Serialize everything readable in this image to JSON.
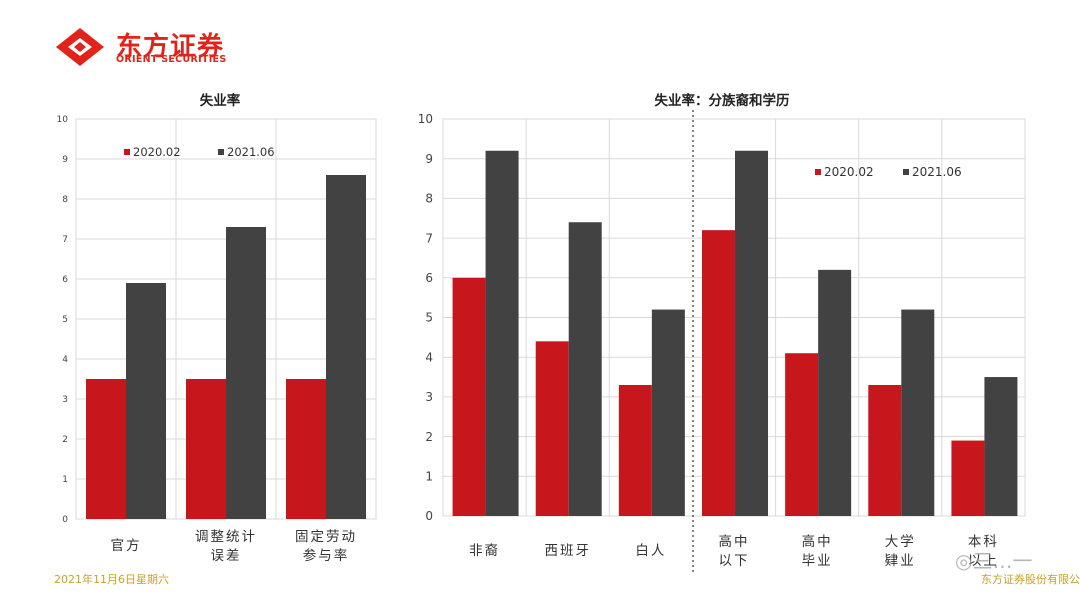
{
  "brand": {
    "name_cn": "东方证券",
    "name_en": "ORIENT SECURITIES",
    "logo_color": "#e2231a"
  },
  "footer": {
    "date": "2021年11月6日星期六",
    "company": "东方证券股份有限公"
  },
  "watermark": {
    "icon": "wechat-icon",
    "text": "三…一"
  },
  "colors": {
    "series_2020": "#c8161d",
    "series_2021": "#424242"
  },
  "chart_data": [
    {
      "type": "bar",
      "title": "失业率",
      "categories": [
        "官方",
        "调整统计\n误差",
        "固定劳动\n参与率"
      ],
      "series": [
        {
          "name": "2020.02",
          "values": [
            3.5,
            3.5,
            3.5
          ]
        },
        {
          "name": "2021.06",
          "values": [
            5.9,
            7.3,
            8.6
          ]
        }
      ],
      "ylim": [
        0,
        10
      ],
      "yticks": [
        "0",
        "1",
        "2",
        "3",
        "4",
        "5",
        "6",
        "7",
        "8",
        "9",
        "10"
      ],
      "grid": true,
      "legend": "top"
    },
    {
      "type": "bar",
      "title": "失业率：分族裔和学历",
      "categories": [
        "非裔",
        "西班牙",
        "白人",
        "高中\n以下",
        "高中\n毕业",
        "大学\n肄业",
        "本科\n以上"
      ],
      "series": [
        {
          "name": "2020.02",
          "values": [
            6.0,
            4.4,
            3.3,
            7.2,
            4.1,
            3.3,
            1.9
          ]
        },
        {
          "name": "2021.06",
          "values": [
            9.2,
            7.4,
            5.2,
            9.2,
            6.2,
            5.2,
            3.5
          ]
        }
      ],
      "ylim": [
        0,
        10
      ],
      "yticks": [
        "0",
        "1",
        "2",
        "3",
        "4",
        "5",
        "6",
        "7",
        "8",
        "9",
        "10"
      ],
      "grid": true,
      "legend": "top-right"
    }
  ]
}
